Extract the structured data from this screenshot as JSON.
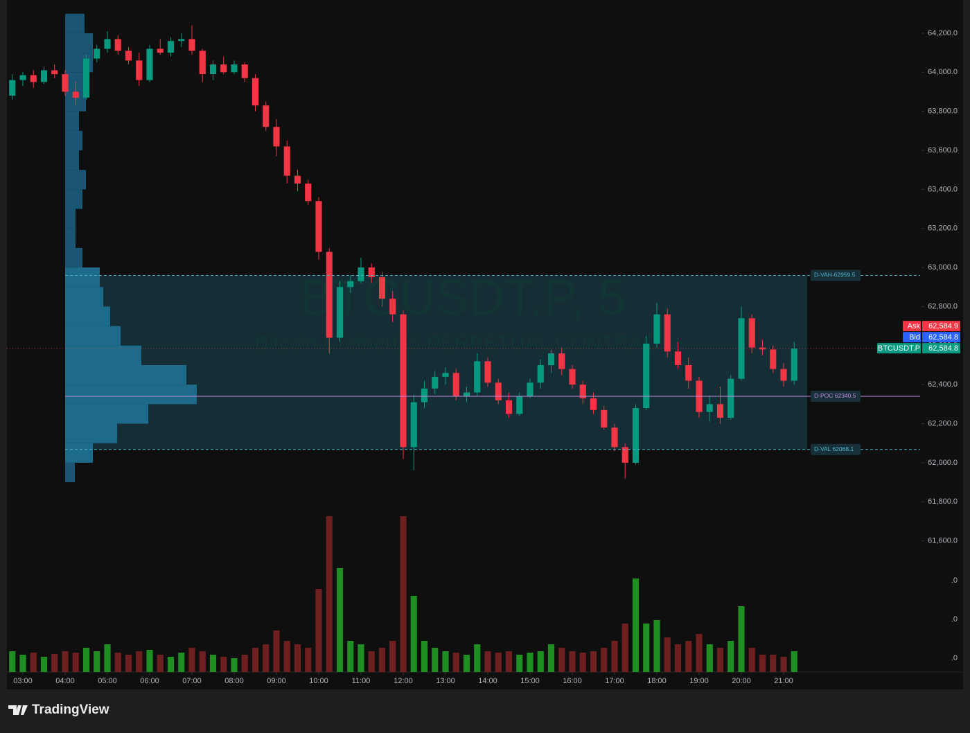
{
  "chart_data": {
    "type": "candlestick",
    "watermark": "BTCUSDT.P, 5",
    "watermark_subtitle": "Bitcoin / TetherUS PERPETUAL CONTRACT",
    "brand": "TradingView",
    "up_color": "#089981",
    "down_color": "#f23645",
    "volume_up_color": "#1f8f23",
    "volume_down_color": "#6e1f1f",
    "x": [
      2.75,
      3,
      3.25,
      3.5,
      3.75,
      4,
      4.25,
      4.5,
      4.75,
      5,
      5.25,
      5.5,
      5.75,
      6,
      6.25,
      6.5,
      6.75,
      7,
      7.25,
      7.5,
      7.75,
      8,
      8.25,
      8.5,
      8.75,
      9,
      9.25,
      9.5,
      9.75,
      10,
      10.25,
      10.5,
      10.75,
      11,
      11.25,
      11.5,
      11.75,
      12,
      12.25,
      12.5,
      12.75,
      13,
      13.25,
      13.5,
      13.75,
      14,
      14.25,
      14.5,
      14.75,
      15,
      15.25,
      15.5,
      15.75,
      16,
      16.25,
      16.5,
      16.75,
      17,
      17.25,
      17.5,
      17.75,
      18,
      18.25,
      18.5,
      18.75,
      19,
      19.25,
      19.5,
      19.75,
      20,
      20.25,
      20.5,
      20.75,
      21,
      21.25
    ],
    "open": [
      63880,
      63960,
      63985,
      63950,
      64010,
      63990,
      63900,
      63870,
      64070,
      64120,
      64170,
      64110,
      64060,
      63960,
      64120,
      64100,
      64160,
      64170,
      64110,
      63990,
      64040,
      64000,
      64040,
      63970,
      63830,
      63720,
      63620,
      63470,
      63430,
      63340,
      63080,
      62640,
      62900,
      62930,
      63000,
      62950,
      62840,
      62760,
      62080,
      62310,
      62380,
      62440,
      62460,
      62340,
      62360,
      62520,
      62410,
      62320,
      62250,
      62340,
      62410,
      62500,
      62560,
      62480,
      62400,
      62330,
      62270,
      62180,
      62080,
      62000,
      62280,
      62610,
      62760,
      62570,
      62500,
      62420,
      62260,
      62300,
      62230,
      62430,
      62740,
      62590,
      62580,
      62480,
      62420
    ],
    "high": [
      63990,
      64000,
      64010,
      64030,
      64040,
      64010,
      63950,
      64090,
      64140,
      64210,
      64190,
      64130,
      64100,
      64140,
      64170,
      64180,
      64200,
      64240,
      64120,
      64060,
      64080,
      64060,
      64050,
      63990,
      63850,
      63760,
      63650,
      63500,
      63450,
      63360,
      63100,
      62930,
      62960,
      63050,
      63020,
      62980,
      62880,
      62780,
      62350,
      62420,
      62470,
      62490,
      62480,
      62390,
      62560,
      62540,
      62430,
      62360,
      62360,
      62430,
      62530,
      62580,
      62590,
      62500,
      62420,
      62360,
      62290,
      62200,
      62100,
      62300,
      62650,
      62820,
      62790,
      62620,
      62540,
      62440,
      62340,
      62390,
      62450,
      62800,
      62760,
      62630,
      62600,
      62510,
      62620
    ],
    "low": [
      63860,
      63930,
      63920,
      63940,
      63970,
      63880,
      63830,
      63860,
      64050,
      64100,
      64090,
      64040,
      63930,
      63950,
      64090,
      64080,
      64130,
      64090,
      63950,
      63960,
      63990,
      63990,
      63950,
      63800,
      63700,
      63570,
      63430,
      63390,
      63320,
      63040,
      62560,
      62620,
      62870,
      62920,
      62920,
      62800,
      62720,
      62020,
      61960,
      62280,
      62350,
      62400,
      62320,
      62310,
      62340,
      62390,
      62300,
      62230,
      62240,
      62330,
      62380,
      62460,
      62450,
      62380,
      62300,
      62250,
      62170,
      62060,
      61920,
      61990,
      62270,
      62590,
      62540,
      62480,
      62380,
      62230,
      62210,
      62200,
      62220,
      62420,
      62560,
      62550,
      62460,
      62390,
      62400
    ],
    "close": [
      63960,
      63985,
      63950,
      64010,
      63990,
      63900,
      63870,
      64070,
      64120,
      64170,
      64110,
      64060,
      63960,
      64120,
      64100,
      64160,
      64170,
      64110,
      63990,
      64040,
      64000,
      64040,
      63970,
      63830,
      63720,
      63620,
      63470,
      63430,
      63340,
      63080,
      62640,
      62900,
      62930,
      63000,
      62950,
      62840,
      62760,
      62080,
      62310,
      62380,
      62440,
      62460,
      62340,
      62360,
      62520,
      62410,
      62320,
      62250,
      62340,
      62410,
      62500,
      62560,
      62480,
      62400,
      62330,
      62270,
      62180,
      62080,
      62000,
      62280,
      62610,
      62760,
      62570,
      62500,
      62420,
      62260,
      62300,
      62230,
      62430,
      62740,
      62590,
      62580,
      62480,
      62420,
      62584.8
    ],
    "volume": [
      30,
      25,
      28,
      22,
      26,
      30,
      28,
      35,
      30,
      40,
      28,
      25,
      30,
      32,
      25,
      22,
      28,
      35,
      30,
      25,
      22,
      20,
      25,
      35,
      40,
      60,
      45,
      40,
      35,
      120,
      225,
      150,
      45,
      40,
      30,
      35,
      45,
      225,
      110,
      45,
      35,
      30,
      28,
      25,
      40,
      30,
      28,
      30,
      25,
      28,
      30,
      40,
      35,
      30,
      28,
      30,
      35,
      45,
      70,
      135,
      70,
      75,
      50,
      40,
      45,
      55,
      40,
      35,
      45,
      95,
      35,
      25,
      25,
      22,
      30
    ],
    "xlim": [
      2.623,
      25.246
    ],
    "xticks": [
      {
        "value": 3,
        "label": "03:00"
      },
      {
        "value": 4,
        "label": "04:00"
      },
      {
        "value": 5,
        "label": "05:00"
      },
      {
        "value": 6,
        "label": "06:00"
      },
      {
        "value": 7,
        "label": "07:00"
      },
      {
        "value": 8,
        "label": "08:00"
      },
      {
        "value": 9,
        "label": "09:00"
      },
      {
        "value": 10,
        "label": "10:00"
      },
      {
        "value": 11,
        "label": "11:00"
      },
      {
        "value": 12,
        "label": "12:00"
      },
      {
        "value": 13,
        "label": "13:00"
      },
      {
        "value": 14,
        "label": "14:00"
      },
      {
        "value": 15,
        "label": "15:00"
      },
      {
        "value": 16,
        "label": "16:00"
      },
      {
        "value": 17,
        "label": "17:00"
      },
      {
        "value": 18,
        "label": "18:00"
      },
      {
        "value": 19,
        "label": "19:00"
      },
      {
        "value": 20,
        "label": "20:00"
      },
      {
        "value": 21,
        "label": "21:00"
      }
    ],
    "ylim": [
      60928,
      64370
    ],
    "yticks": [
      {
        "value": 61600,
        "label": "61,600.0"
      },
      {
        "value": 61800,
        "label": "61,800.0"
      },
      {
        "value": 62000,
        "label": "62,000.0"
      },
      {
        "value": 62200,
        "label": "62,200.0"
      },
      {
        "value": 62400,
        "label": "62,400.0"
      },
      {
        "value": 62600,
        "label": "62,600.0"
      },
      {
        "value": 62800,
        "label": "62,800.0"
      },
      {
        "value": 63000,
        "label": "63,000.0"
      },
      {
        "value": 63200,
        "label": "63,200.0"
      },
      {
        "value": 63400,
        "label": "63,400.0"
      },
      {
        "value": 63600,
        "label": "63,600.0"
      },
      {
        "value": 63800,
        "label": "63,800.0"
      },
      {
        "value": 64000,
        "label": "64,000.0"
      },
      {
        "value": 64200,
        "label": "64,200.0"
      }
    ],
    "y2lim": [
      0,
      970
    ],
    "y2ticks": [
      {
        "value": 20,
        "label": ".0"
      },
      {
        "value": 76,
        "label": ".0"
      },
      {
        "value": 132,
        "label": ".0"
      }
    ],
    "volume_profile": {
      "levels": [
        61900,
        62000,
        62100,
        62200,
        62300,
        62400,
        62500,
        62600,
        62700,
        62800,
        62900,
        63000,
        63100,
        63200,
        63300,
        63400,
        63500,
        63600,
        63700,
        63800,
        63900,
        64000,
        64100,
        64200
      ],
      "values": [
        14,
        40,
        75,
        120,
        190,
        175,
        110,
        80,
        65,
        55,
        50,
        25,
        15,
        15,
        25,
        30,
        20,
        25,
        20,
        30,
        35,
        40,
        40,
        28
      ],
      "color": "#1d6a8a",
      "outside_color": "#1a5673"
    },
    "value_area": {
      "color": "#17353f"
    },
    "levels": [
      {
        "name": "VAH",
        "value": 62959.5,
        "label": "D-VAH-62959.5",
        "color": "#4fb3c8"
      },
      {
        "name": "POC",
        "value": 62340.5,
        "label": "D-POC 62340.5",
        "color": "#c58be0"
      },
      {
        "name": "VAL",
        "value": 62068.1,
        "label": "D-VAL 62068.1",
        "color": "#4fb3c8"
      }
    ],
    "price_labels": [
      {
        "name": "Ask",
        "value": 62584.9,
        "value_label": "62,584.9",
        "color": "#f23645"
      },
      {
        "name": "Bid",
        "value": 62584.8,
        "value_label": "62,584.8",
        "color": "#2962ff"
      },
      {
        "name": "BTCUSDT.P",
        "value": 62584.8,
        "value_label": "62,584.8",
        "color": "#089981"
      }
    ]
  }
}
